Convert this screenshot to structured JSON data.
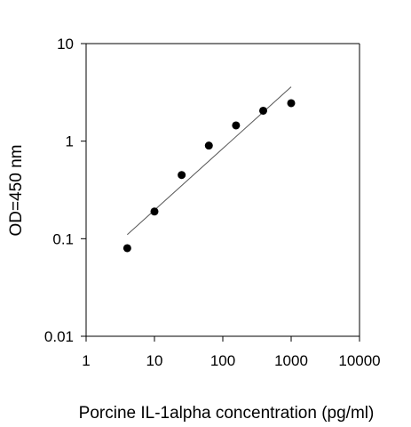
{
  "chart_data": {
    "type": "scatter",
    "xlabel": "Porcine IL-1alpha concentration (pg/ml)",
    "ylabel": "OD=450 nm",
    "xscale": "log",
    "yscale": "log",
    "xlim": [
      1,
      10000
    ],
    "ylim": [
      0.01,
      10
    ],
    "x_ticks": [
      1,
      10,
      100,
      1000,
      10000
    ],
    "x_tick_labels": [
      "1",
      "10",
      "100",
      "1000",
      "10000"
    ],
    "y_ticks": [
      0.01,
      0.1,
      1,
      10
    ],
    "y_tick_labels": [
      "0.01",
      "0.1",
      "1",
      "10"
    ],
    "grid": false,
    "series": [
      {
        "points": [
          {
            "x": 4,
            "y": 0.08
          },
          {
            "x": 10,
            "y": 0.19
          },
          {
            "x": 25,
            "y": 0.45
          },
          {
            "x": 62.5,
            "y": 0.9
          },
          {
            "x": 156,
            "y": 1.45
          },
          {
            "x": 390,
            "y": 2.05
          },
          {
            "x": 1000,
            "y": 2.45
          }
        ]
      }
    ],
    "fit_line": {
      "x": [
        4,
        1000
      ],
      "y": [
        0.11,
        3.6
      ]
    },
    "colors": {
      "points": "#000000",
      "fit": "#555555",
      "axes": "#000000"
    }
  }
}
